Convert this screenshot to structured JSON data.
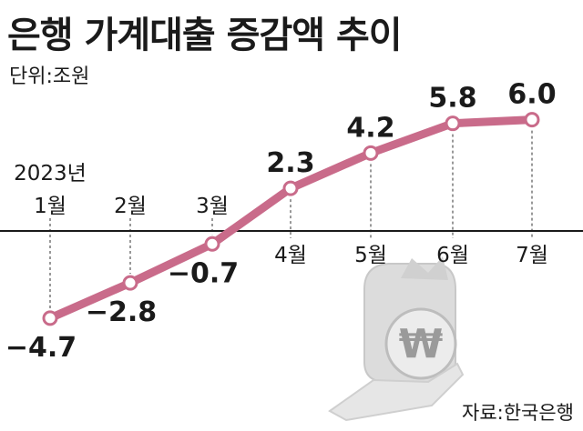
{
  "chart_data": {
    "type": "line",
    "title": "은행 가계대출 증감액 추이",
    "unit": "단위:조원",
    "source": "자료:한국은행",
    "year_label": "2023년",
    "categories": [
      "1월",
      "2월",
      "3월",
      "4월",
      "5월",
      "6월",
      "7월"
    ],
    "values": [
      -4.7,
      -2.8,
      -0.7,
      2.3,
      4.2,
      5.8,
      6.0
    ],
    "value_labels": [
      "−4.7",
      "−2.8",
      "−0.7",
      "2.3",
      "4.2",
      "5.8",
      "6.0"
    ],
    "ylim": [
      -6.0,
      7.5
    ],
    "grid": false,
    "colors": {
      "line": "#c96b8a",
      "marker_fill": "#ffffff",
      "zero_line": "#1a1a1a",
      "guide": "#555555",
      "watermark": "#d9d9d9"
    }
  }
}
